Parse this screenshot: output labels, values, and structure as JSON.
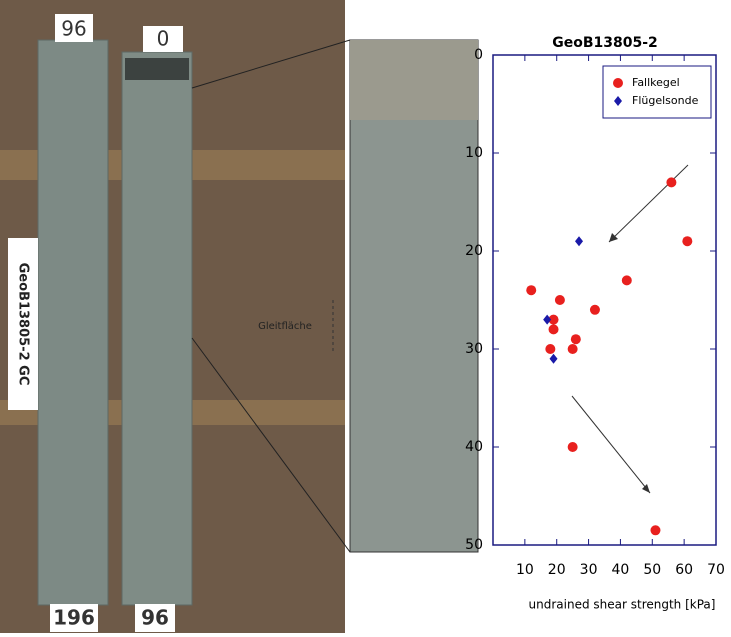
{
  "photo_labels": {
    "core1_top": "96",
    "core2_top": "0",
    "core1_bottom": "196",
    "core2_bottom": "96",
    "core_name": "GeoB13805-2 GC",
    "slip_plane": "Gleitfläche"
  },
  "chart_data": {
    "type": "scatter",
    "title": "GeoB13805-2",
    "xlabel": "undrained shear strength [kPa]",
    "xlim": [
      0,
      70
    ],
    "xticks": [
      10,
      20,
      30,
      40,
      50,
      60,
      70
    ],
    "ylim": [
      0,
      50
    ],
    "yticks": [
      0,
      10,
      20,
      30,
      40,
      50
    ],
    "y_inverted": true,
    "legend": "top-right",
    "series": [
      {
        "name": "Fallkegel",
        "color": "#e8201e",
        "marker": "circle",
        "x": [
          56,
          61,
          42,
          12,
          21,
          32,
          19,
          19,
          26,
          18,
          25,
          25,
          51
        ],
        "values": [
          13,
          19,
          23,
          24,
          25,
          26,
          27,
          28,
          29,
          30,
          30,
          40,
          48.5
        ]
      },
      {
        "name": "Flügelsonde",
        "color": "#1a1aa8",
        "marker": "diamond",
        "x": [
          27,
          17,
          19
        ],
        "values": [
          19,
          27,
          31
        ]
      }
    ]
  }
}
